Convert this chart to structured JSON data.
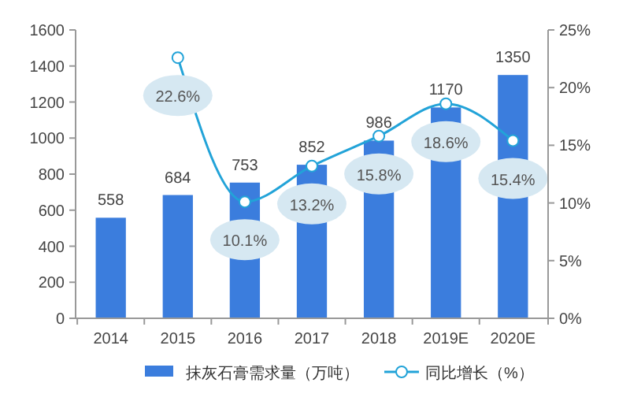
{
  "chart_data": {
    "type": "bar",
    "categories": [
      "2014",
      "2015",
      "2016",
      "2017",
      "2018",
      "2019E",
      "2020E"
    ],
    "series": [
      {
        "name": "抹灰石膏需求量（万吨）",
        "color": "#3b7ddd",
        "values": [
          558,
          684,
          753,
          852,
          986,
          1170,
          1350
        ]
      },
      {
        "name": "同比增长（%）",
        "type": "line",
        "axis": "y2",
        "color": "#22a3d8",
        "marker": "circle",
        "values": [
          null,
          22.6,
          10.1,
          13.2,
          15.8,
          18.6,
          15.4
        ],
        "value_labels": [
          null,
          "22.6%",
          "10.1%",
          "13.2%",
          "15.8%",
          "18.6%",
          "15.4%"
        ]
      }
    ],
    "data_labels": true,
    "ylim": [
      0,
      1600
    ],
    "yticks": [
      0,
      200,
      400,
      600,
      800,
      1000,
      1200,
      1400,
      1600
    ],
    "y2lim": [
      0,
      25
    ],
    "y2ticks": [
      {
        "value": 0,
        "label": "0%"
      },
      {
        "value": 5,
        "label": "5%"
      },
      {
        "value": 10,
        "label": "10%"
      },
      {
        "value": 15,
        "label": "15%"
      },
      {
        "value": 20,
        "label": "20%"
      },
      {
        "value": 25,
        "label": "25%"
      }
    ],
    "legend": "bottom",
    "grid": false
  }
}
